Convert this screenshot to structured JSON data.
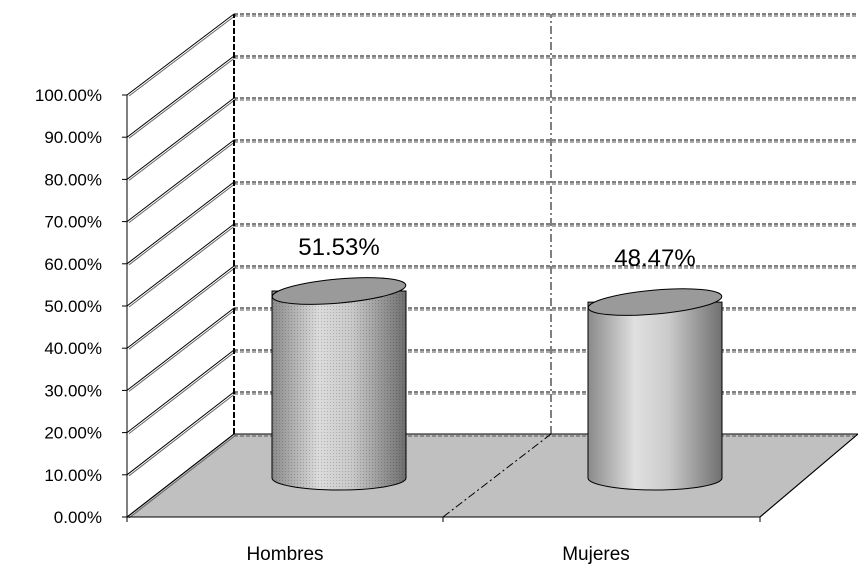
{
  "chart_data": {
    "type": "bar",
    "style": "3d-cylinder",
    "categories": [
      "Hombres",
      "Mujeres"
    ],
    "values": [
      51.53,
      48.47
    ],
    "data_labels": [
      "51.53%",
      "48.47%"
    ],
    "y_ticks": [
      "0.00%",
      "10.00%",
      "20.00%",
      "30.00%",
      "40.00%",
      "50.00%",
      "60.00%",
      "70.00%",
      "80.00%",
      "90.00%",
      "100.00%"
    ],
    "ylim": [
      0,
      100
    ],
    "grid": true,
    "legend": "none",
    "colors": {
      "floor": "#c0c0c0",
      "bar_light": "#d8d8d8",
      "bar_dark": "#7a7a7a",
      "bar_top": "#9a9a9a",
      "grid": "#000000"
    }
  }
}
